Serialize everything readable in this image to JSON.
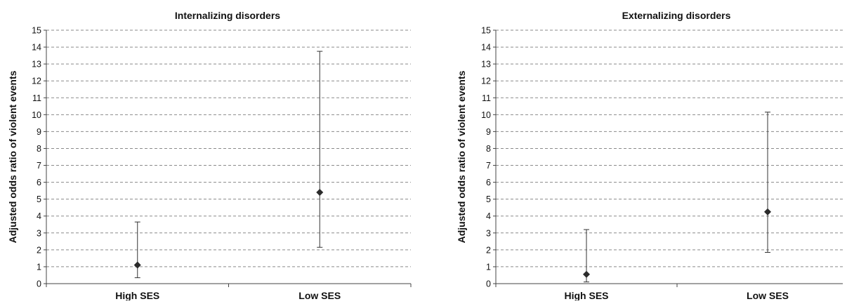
{
  "chart_data": [
    {
      "type": "scatter",
      "title": "Internalizing disorders",
      "xlabel": "",
      "ylabel": "Adjusted odds ratio of violent events",
      "categories": [
        "High SES",
        "Low SES"
      ],
      "values": [
        1.1,
        5.4
      ],
      "ci_lower": [
        0.35,
        2.15
      ],
      "ci_upper": [
        3.65,
        13.75
      ],
      "ylim": [
        0,
        15
      ],
      "yticks": [
        "0",
        "1",
        "2",
        "3",
        "4",
        "5",
        "6",
        "7",
        "8",
        "9",
        "10",
        "11",
        "12",
        "13",
        "14",
        "15"
      ],
      "grid": true
    },
    {
      "type": "scatter",
      "title": "Externalizing disorders",
      "xlabel": "",
      "ylabel": "Adjusted odds ratio of violent events",
      "categories": [
        "High SES",
        "Low SES"
      ],
      "values": [
        0.55,
        4.25
      ],
      "ci_lower": [
        0.1,
        1.85
      ],
      "ci_upper": [
        3.2,
        10.15
      ],
      "ylim": [
        0,
        15
      ],
      "yticks": [
        "0",
        "1",
        "2",
        "3",
        "4",
        "5",
        "6",
        "7",
        "8",
        "9",
        "10",
        "11",
        "12",
        "13",
        "14",
        "15"
      ],
      "grid": true
    }
  ],
  "colors": {
    "marker": "#2b2b2b",
    "gridline": "#8a8a8a",
    "axis": "#444444"
  }
}
